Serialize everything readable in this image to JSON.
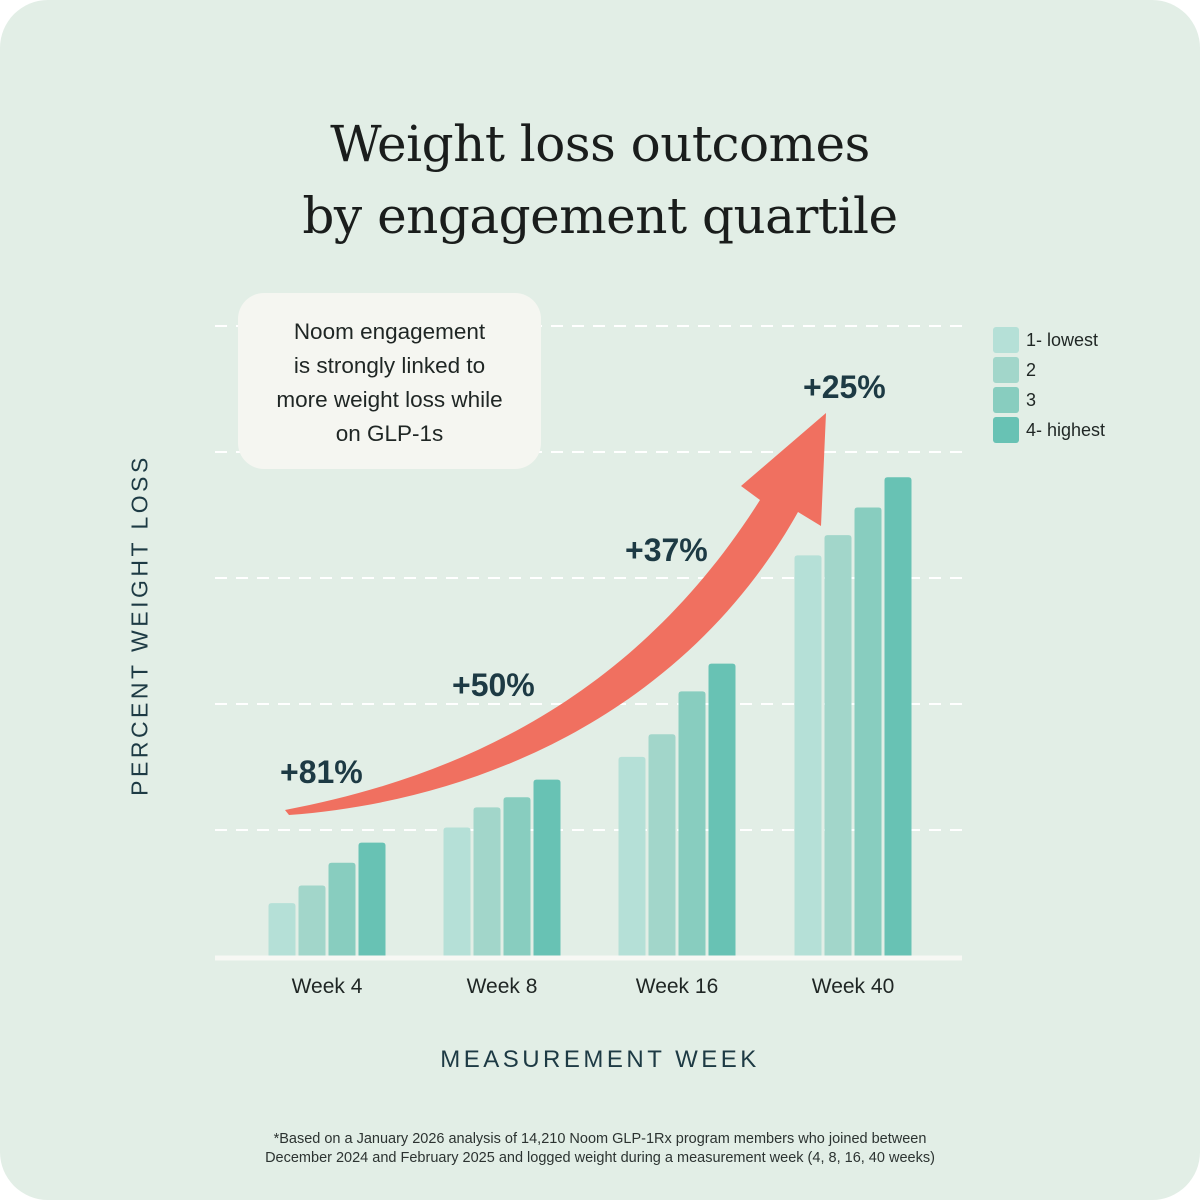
{
  "title_line1": "Weight loss outcomes",
  "title_line2": "by engagement quartile",
  "callout": {
    "line1": "Noom engagement",
    "line2": "is strongly linked to",
    "line3": "more weight loss while",
    "line4": "on GLP-1s"
  },
  "footnote": {
    "line1": "*Based on a January 2026 analysis of 14,210 Noom GLP-1Rx program members who joined between",
    "line2": "December 2024 and February 2025 and logged weight during a measurement week (4, 8, 16, 40 weeks)"
  },
  "colors": {
    "background": "#e2eee6",
    "q1": "#b5e0d7",
    "q2": "#a2d6ca",
    "q3": "#88cdbf",
    "q4": "#68c2b4",
    "arrow": "#f07060",
    "axis_text": "#1d3a44"
  },
  "chart_data": {
    "type": "bar",
    "title": "Weight loss outcomes by engagement quartile",
    "xlabel": "MEASUREMENT WEEK",
    "ylabel": "PERCENT WEIGHT LOSS",
    "categories": [
      "Week 4",
      "Week 8",
      "Week 16",
      "Week 40"
    ],
    "series": [
      {
        "name": "1- lowest",
        "values": [
          2.1,
          5.1,
          7.9,
          15.9
        ]
      },
      {
        "name": "2",
        "values": [
          2.8,
          5.9,
          8.8,
          16.7
        ]
      },
      {
        "name": "3",
        "values": [
          3.7,
          6.3,
          10.5,
          17.8
        ]
      },
      {
        "name": "4- highest",
        "values": [
          4.5,
          7.0,
          11.6,
          19.0
        ]
      }
    ],
    "ylim": [
      0,
      25
    ],
    "grid": true,
    "legend": "top-right",
    "annotations": [
      "+81%",
      "+50%",
      "+37%",
      "+25%"
    ]
  }
}
